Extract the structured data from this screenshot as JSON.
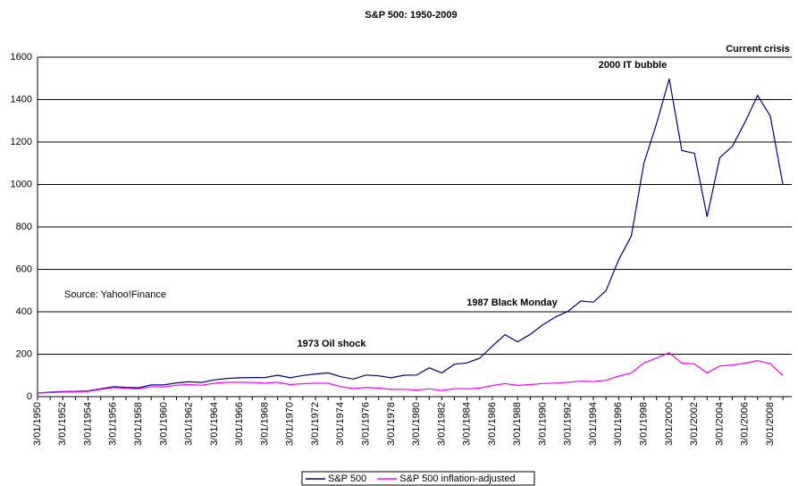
{
  "chart_data": {
    "type": "line",
    "title": "S&P 500: 1950-2009",
    "categories": [
      "3/01/1950",
      null,
      "3/01/1952",
      null,
      "3/01/1954",
      null,
      "3/01/1956",
      null,
      "3/01/1958",
      null,
      "3/01/1960",
      null,
      "3/01/1962",
      null,
      "3/01/1964",
      null,
      "3/01/1966",
      null,
      "3/01/1968",
      null,
      "3/01/1970",
      null,
      "3/01/1972",
      null,
      "3/01/1974",
      null,
      "3/01/1976",
      null,
      "3/01/1978",
      null,
      "3/01/1980",
      null,
      "3/01/1982",
      null,
      "3/01/1984",
      null,
      "3/01/1986",
      null,
      "3/01/1988",
      null,
      "3/01/1990",
      null,
      "3/01/1992",
      null,
      "3/01/1994",
      null,
      "3/01/1996",
      null,
      "3/01/1998",
      null,
      "3/01/2000",
      null,
      "3/01/2002",
      null,
      "3/01/2004",
      null,
      "3/01/2006",
      null,
      "3/01/2008",
      null
    ],
    "series": [
      {
        "name": "S&P 500",
        "color": "#000080",
        "values": [
          17,
          21,
          24,
          25,
          27,
          37,
          47,
          44,
          42,
          55,
          55,
          65,
          70,
          67,
          79,
          86,
          89,
          90,
          90,
          101,
          89,
          100,
          107,
          112,
          94,
          83,
          102,
          98,
          89,
          101,
          102,
          136,
          112,
          153,
          159,
          181,
          238,
          292,
          258,
          294,
          339,
          375,
          403,
          451,
          445,
          500,
          645,
          757,
          1101,
          1286,
          1498,
          1160,
          1147,
          848,
          1126,
          1180,
          1294,
          1420,
          1322,
          1000
        ]
      },
      {
        "name": "S&P 500 inflation-adjusted",
        "color": "#ff00ff",
        "values": [
          17,
          19,
          22,
          23,
          25,
          34,
          43,
          39,
          36,
          47,
          46,
          54,
          57,
          54,
          63,
          68,
          68,
          67,
          64,
          68,
          57,
          61,
          63,
          63,
          47,
          38,
          44,
          40,
          34,
          35,
          31,
          37,
          29,
          38,
          37,
          40,
          52,
          62,
          53,
          57,
          62,
          64,
          68,
          73,
          71,
          77,
          97,
          111,
          159,
          182,
          207,
          158,
          154,
          112,
          145,
          149,
          158,
          170,
          155,
          100
        ]
      }
    ],
    "ylim": [
      0,
      1600
    ],
    "yticks": [
      0,
      200,
      400,
      600,
      800,
      1000,
      1200,
      1400,
      1600
    ],
    "grid": true,
    "annotations": [
      "2000 IT bubble",
      "Current crisis",
      "1987 Black Monday",
      "1973 Oil shock",
      "Source: Yahoo!Finance"
    ],
    "legend": "bottom"
  }
}
